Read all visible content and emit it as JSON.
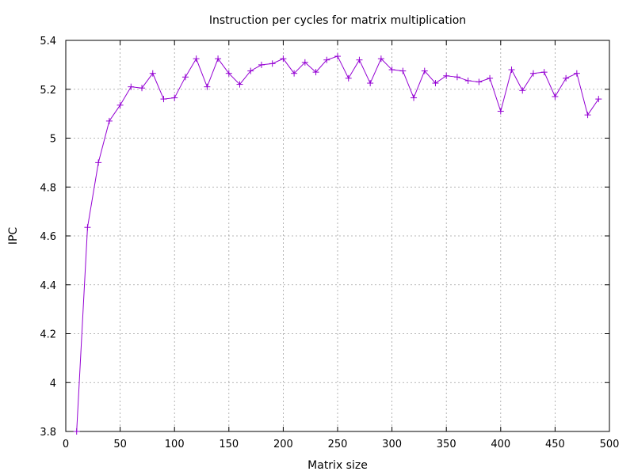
{
  "chart_data": {
    "type": "line",
    "title": "Instruction per cycles for matrix multiplication",
    "xlabel": "Matrix size",
    "ylabel": "IPC",
    "xlim": [
      0,
      500
    ],
    "ylim": [
      3.8,
      5.4
    ],
    "xticks": [
      0,
      50,
      100,
      150,
      200,
      250,
      300,
      350,
      400,
      450,
      500
    ],
    "yticks": [
      3.8,
      4.0,
      4.2,
      4.4,
      4.6,
      4.8,
      5.0,
      5.2,
      5.4
    ],
    "xtick_labels": [
      "0",
      "50",
      "100",
      "150",
      "200",
      "250",
      "300",
      "350",
      "400",
      "450",
      "500"
    ],
    "ytick_labels": [
      "3.8",
      "4",
      "4.2",
      "4.4",
      "4.6",
      "4.8",
      "5",
      "5.2",
      "5.4"
    ],
    "grid": true,
    "color": "#9400d3",
    "marker": "plus",
    "series": [
      {
        "x": [
          10,
          20,
          30,
          40,
          50,
          60,
          70,
          80,
          90,
          100,
          110,
          120,
          130,
          140,
          150,
          160,
          170,
          180,
          190,
          200,
          210,
          220,
          230,
          240,
          250,
          260,
          270,
          280,
          290,
          300,
          310,
          320,
          330,
          340,
          350,
          360,
          370,
          380,
          390,
          400,
          410,
          420,
          430,
          440,
          450,
          460,
          470,
          480,
          490
        ],
        "values": [
          3.8,
          4.635,
          4.9,
          5.07,
          5.135,
          5.21,
          5.205,
          5.265,
          5.16,
          5.165,
          5.25,
          5.325,
          5.21,
          5.325,
          5.265,
          5.22,
          5.275,
          5.3,
          5.305,
          5.325,
          5.265,
          5.31,
          5.27,
          5.32,
          5.335,
          5.245,
          5.32,
          5.225,
          5.325,
          5.28,
          5.275,
          5.165,
          5.275,
          5.225,
          5.255,
          5.25,
          5.235,
          5.23,
          5.245,
          5.11,
          5.28,
          5.195,
          5.265,
          5.27,
          5.17,
          5.245,
          5.265,
          5.095,
          5.16
        ]
      }
    ]
  }
}
